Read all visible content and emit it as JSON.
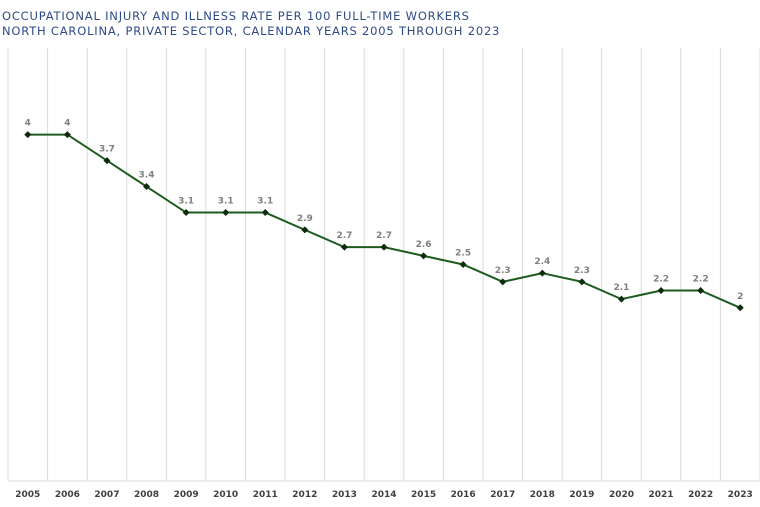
{
  "chart_data": {
    "type": "line",
    "title": "OCCUPATIONAL INJURY AND ILLNESS RATE PER 100 FULL-TIME WORKERS",
    "subtitle": "NORTH CAROLINA, PRIVATE SECTOR, CALENDAR YEARS 2005 THROUGH 2023",
    "categories": [
      "2005",
      "2006",
      "2007",
      "2008",
      "2009",
      "2010",
      "2011",
      "2012",
      "2013",
      "2014",
      "2015",
      "2016",
      "2017",
      "2018",
      "2019",
      "2020",
      "2021",
      "2022",
      "2023"
    ],
    "series": [
      {
        "values": [
          4,
          4,
          3.7,
          3.4,
          3.1,
          3.1,
          3.1,
          2.9,
          2.7,
          2.7,
          2.6,
          2.5,
          2.3,
          2.4,
          2.3,
          2.1,
          2.2,
          2.2,
          2
        ]
      }
    ],
    "data_labels": [
      "4",
      "4",
      "3.7",
      "3.4",
      "3.1",
      "3.1",
      "3.1",
      "2.9",
      "2.7",
      "2.7",
      "2.6",
      "2.5",
      "2.3",
      "2.4",
      "2.3",
      "2.1",
      "2.2",
      "2.2",
      "2"
    ],
    "xlabel": "",
    "ylabel": "",
    "ylim": [
      0,
      5
    ],
    "grid": "vertical",
    "legend": "none",
    "colors": {
      "line": "#1e5c1e",
      "marker": "#0d2b0d",
      "grid": "#d9d9d9",
      "title": "#2e4a87",
      "label": "#7f7f7f",
      "tick": "#404040"
    }
  }
}
